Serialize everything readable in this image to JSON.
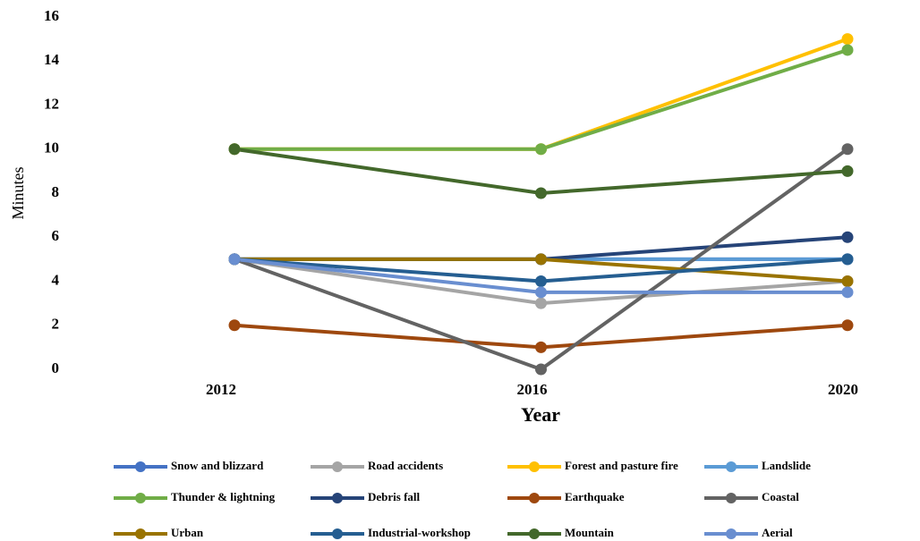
{
  "chart_data": {
    "type": "line",
    "x_label": "Year",
    "y_label": "Minutes",
    "categories": [
      "2012",
      "2016",
      "2020"
    ],
    "ylim": [
      0,
      16
    ],
    "yticks": [
      0,
      2,
      4,
      6,
      8,
      10,
      12,
      14,
      16
    ],
    "grid": false,
    "series": [
      {
        "name": "Snow and blizzard",
        "color": "#4472c4",
        "values": [
          5,
          5,
          5
        ]
      },
      {
        "name": "Road accidents",
        "color": "#a5a5a5",
        "values": [
          5,
          3,
          4
        ]
      },
      {
        "name": "Forest and pasture fire",
        "color": "#ffc000",
        "values": [
          10,
          10,
          15
        ]
      },
      {
        "name": "Landslide",
        "color": "#5b9bd5",
        "values": [
          5,
          5,
          5
        ]
      },
      {
        "name": "Thunder & lightning",
        "color": "#70ad47",
        "values": [
          10,
          10,
          14.5
        ]
      },
      {
        "name": "Debris fall",
        "color": "#264478",
        "values": [
          5,
          5,
          6
        ]
      },
      {
        "name": "Earthquake",
        "color": "#9e480e",
        "values": [
          2,
          1,
          2
        ]
      },
      {
        "name": "Coastal",
        "color": "#636363",
        "values": [
          5,
          0,
          10
        ]
      },
      {
        "name": "Urban",
        "color": "#997300",
        "values": [
          5,
          5,
          4
        ]
      },
      {
        "name": "Industrial-workshop",
        "color": "#255e91",
        "values": [
          5,
          4,
          5
        ]
      },
      {
        "name": "Mountain",
        "color": "#43682b",
        "values": [
          10,
          8,
          9
        ]
      },
      {
        "name": "Aerial",
        "color": "#698ed0",
        "values": [
          5,
          3.5,
          3.5
        ]
      }
    ]
  }
}
